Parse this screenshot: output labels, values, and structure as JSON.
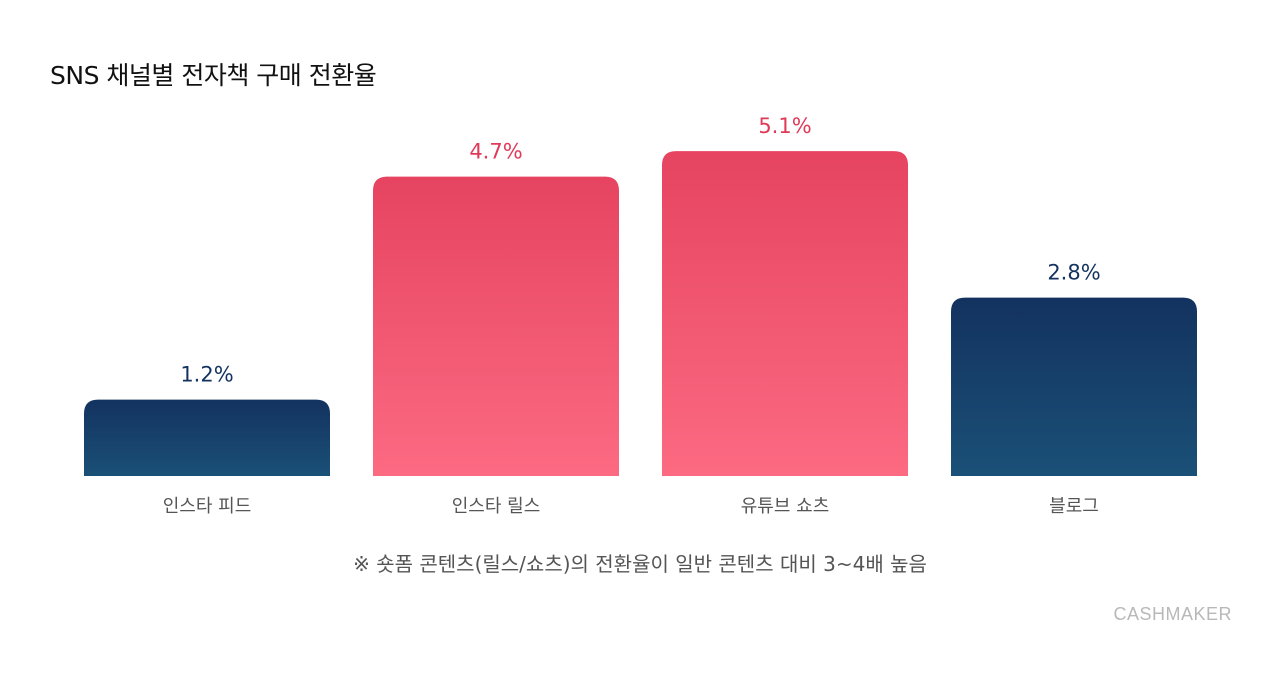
{
  "title": "SNS 채널별 전자책 구매 전환율",
  "note": "※ 숏폼 콘텐츠(릴스/쇼츠)의 전환율이 일반 콘텐츠 대비 3~4배 높음",
  "brand": "CASHMAKER",
  "colors": {
    "navy_top": "#13325f",
    "navy_bottom": "#1a5077",
    "pink_top": "#e64460",
    "pink_bottom": "#fc6a82",
    "navy_label": "#13325f",
    "pink_label": "#e03a58",
    "category_label": "#555555"
  },
  "chart_data": {
    "type": "bar",
    "title": "SNS 채널별 전자책 구매 전환율",
    "categories": [
      "인스타 피드",
      "인스타 릴스",
      "유튜브 쇼츠",
      "블로그"
    ],
    "values": [
      1.2,
      4.7,
      5.1,
      2.8
    ],
    "value_labels": [
      "1.2%",
      "4.7%",
      "5.1%",
      "2.8%"
    ],
    "highlight": [
      false,
      true,
      true,
      false
    ],
    "unit": "%",
    "ylim": [
      0,
      6.5
    ],
    "grid": false,
    "legend": "none",
    "xlabel": "",
    "ylabel": ""
  }
}
